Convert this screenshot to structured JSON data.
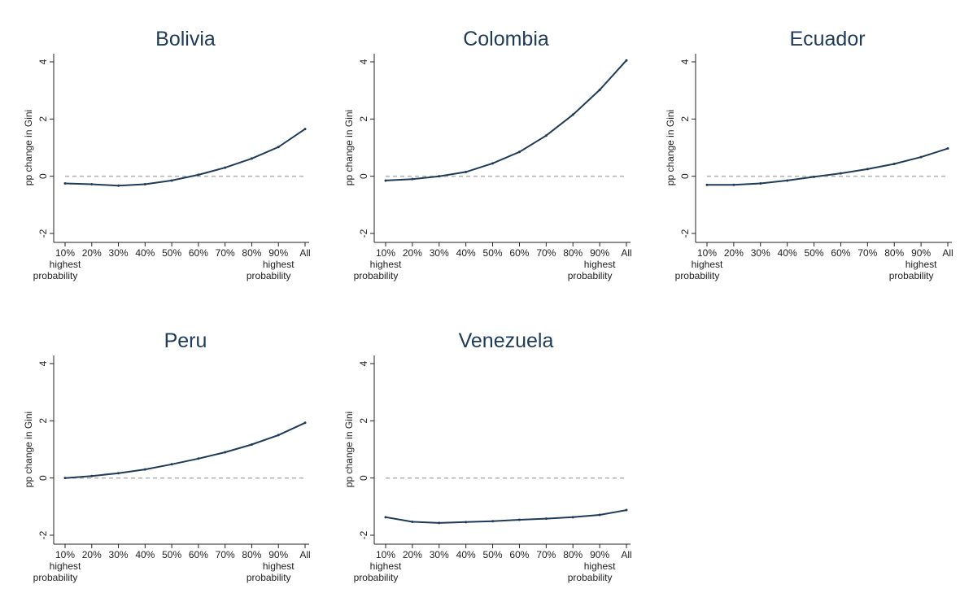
{
  "chart_data": [
    {
      "type": "line",
      "title": "Bolivia",
      "ylabel": "pp change in Gini",
      "ylim": [
        -2,
        4
      ],
      "yticks": [
        -2,
        0,
        2,
        4
      ],
      "categories": [
        "10%",
        "20%",
        "30%",
        "40%",
        "50%",
        "60%",
        "70%",
        "80%",
        "90%",
        "All"
      ],
      "category_notes": {
        "first": "highest probability",
        "ninth": "highest probability"
      },
      "reference_line": 0,
      "values": [
        -0.25,
        -0.28,
        -0.33,
        -0.28,
        -0.15,
        0.05,
        0.3,
        0.62,
        1.02,
        1.65
      ]
    },
    {
      "type": "line",
      "title": "Colombia",
      "ylabel": "pp change in Gini",
      "ylim": [
        -2,
        4
      ],
      "yticks": [
        -2,
        0,
        2,
        4
      ],
      "categories": [
        "10%",
        "20%",
        "30%",
        "40%",
        "50%",
        "60%",
        "70%",
        "80%",
        "90%",
        "All"
      ],
      "category_notes": {
        "first": "highest probability",
        "ninth": "highest probability"
      },
      "reference_line": 0,
      "values": [
        -0.15,
        -0.1,
        0.0,
        0.15,
        0.45,
        0.85,
        1.42,
        2.15,
        3.02,
        4.05
      ]
    },
    {
      "type": "line",
      "title": "Ecuador",
      "ylabel": "pp change in Gini",
      "ylim": [
        -2,
        4
      ],
      "yticks": [
        -2,
        0,
        2,
        4
      ],
      "categories": [
        "10%",
        "20%",
        "30%",
        "40%",
        "50%",
        "60%",
        "70%",
        "80%",
        "90%",
        "All"
      ],
      "category_notes": {
        "first": "highest probability",
        "ninth": "highest probability"
      },
      "reference_line": 0,
      "values": [
        -0.3,
        -0.3,
        -0.25,
        -0.15,
        -0.02,
        0.1,
        0.25,
        0.43,
        0.67,
        0.97
      ]
    },
    {
      "type": "line",
      "title": "Peru",
      "ylabel": "pp change in Gini",
      "ylim": [
        -2,
        4
      ],
      "yticks": [
        -2,
        0,
        2,
        4
      ],
      "categories": [
        "10%",
        "20%",
        "30%",
        "40%",
        "50%",
        "60%",
        "70%",
        "80%",
        "90%",
        "All"
      ],
      "category_notes": {
        "first": "highest probability",
        "ninth": "highest probability"
      },
      "reference_line": 0,
      "values": [
        0.0,
        0.07,
        0.17,
        0.3,
        0.48,
        0.68,
        0.9,
        1.17,
        1.5,
        1.93
      ]
    },
    {
      "type": "line",
      "title": "Venezuela",
      "ylabel": "pp change in Gini",
      "ylim": [
        -2,
        4
      ],
      "yticks": [
        -2,
        0,
        2,
        4
      ],
      "categories": [
        "10%",
        "20%",
        "30%",
        "40%",
        "50%",
        "60%",
        "70%",
        "80%",
        "90%",
        "All"
      ],
      "category_notes": {
        "first": "highest probability",
        "ninth": "highest probability"
      },
      "reference_line": 0,
      "values": [
        -1.37,
        -1.53,
        -1.57,
        -1.54,
        -1.51,
        -1.46,
        -1.42,
        -1.37,
        -1.29,
        -1.12
      ]
    }
  ]
}
